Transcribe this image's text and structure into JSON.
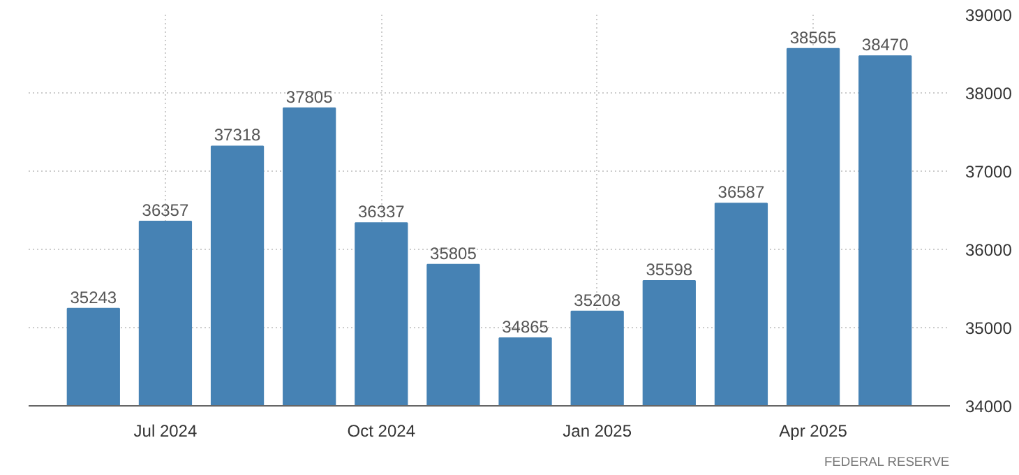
{
  "chart_data": {
    "type": "bar",
    "categories": [
      null,
      "Jul 2024",
      null,
      null,
      "Oct 2024",
      null,
      null,
      "Jan 2025",
      null,
      null,
      "Apr 2025",
      null
    ],
    "values": [
      35243,
      36357,
      37318,
      37805,
      36337,
      35805,
      34865,
      35208,
      35598,
      36587,
      38565,
      38470
    ],
    "color": "#4682b4",
    "ylim": [
      34000,
      39000
    ],
    "yticks": [
      34000,
      35000,
      36000,
      37000,
      38000,
      39000
    ],
    "grid": true,
    "data_labels": true,
    "annotations": [
      "FEDERAL RESERVE"
    ]
  }
}
